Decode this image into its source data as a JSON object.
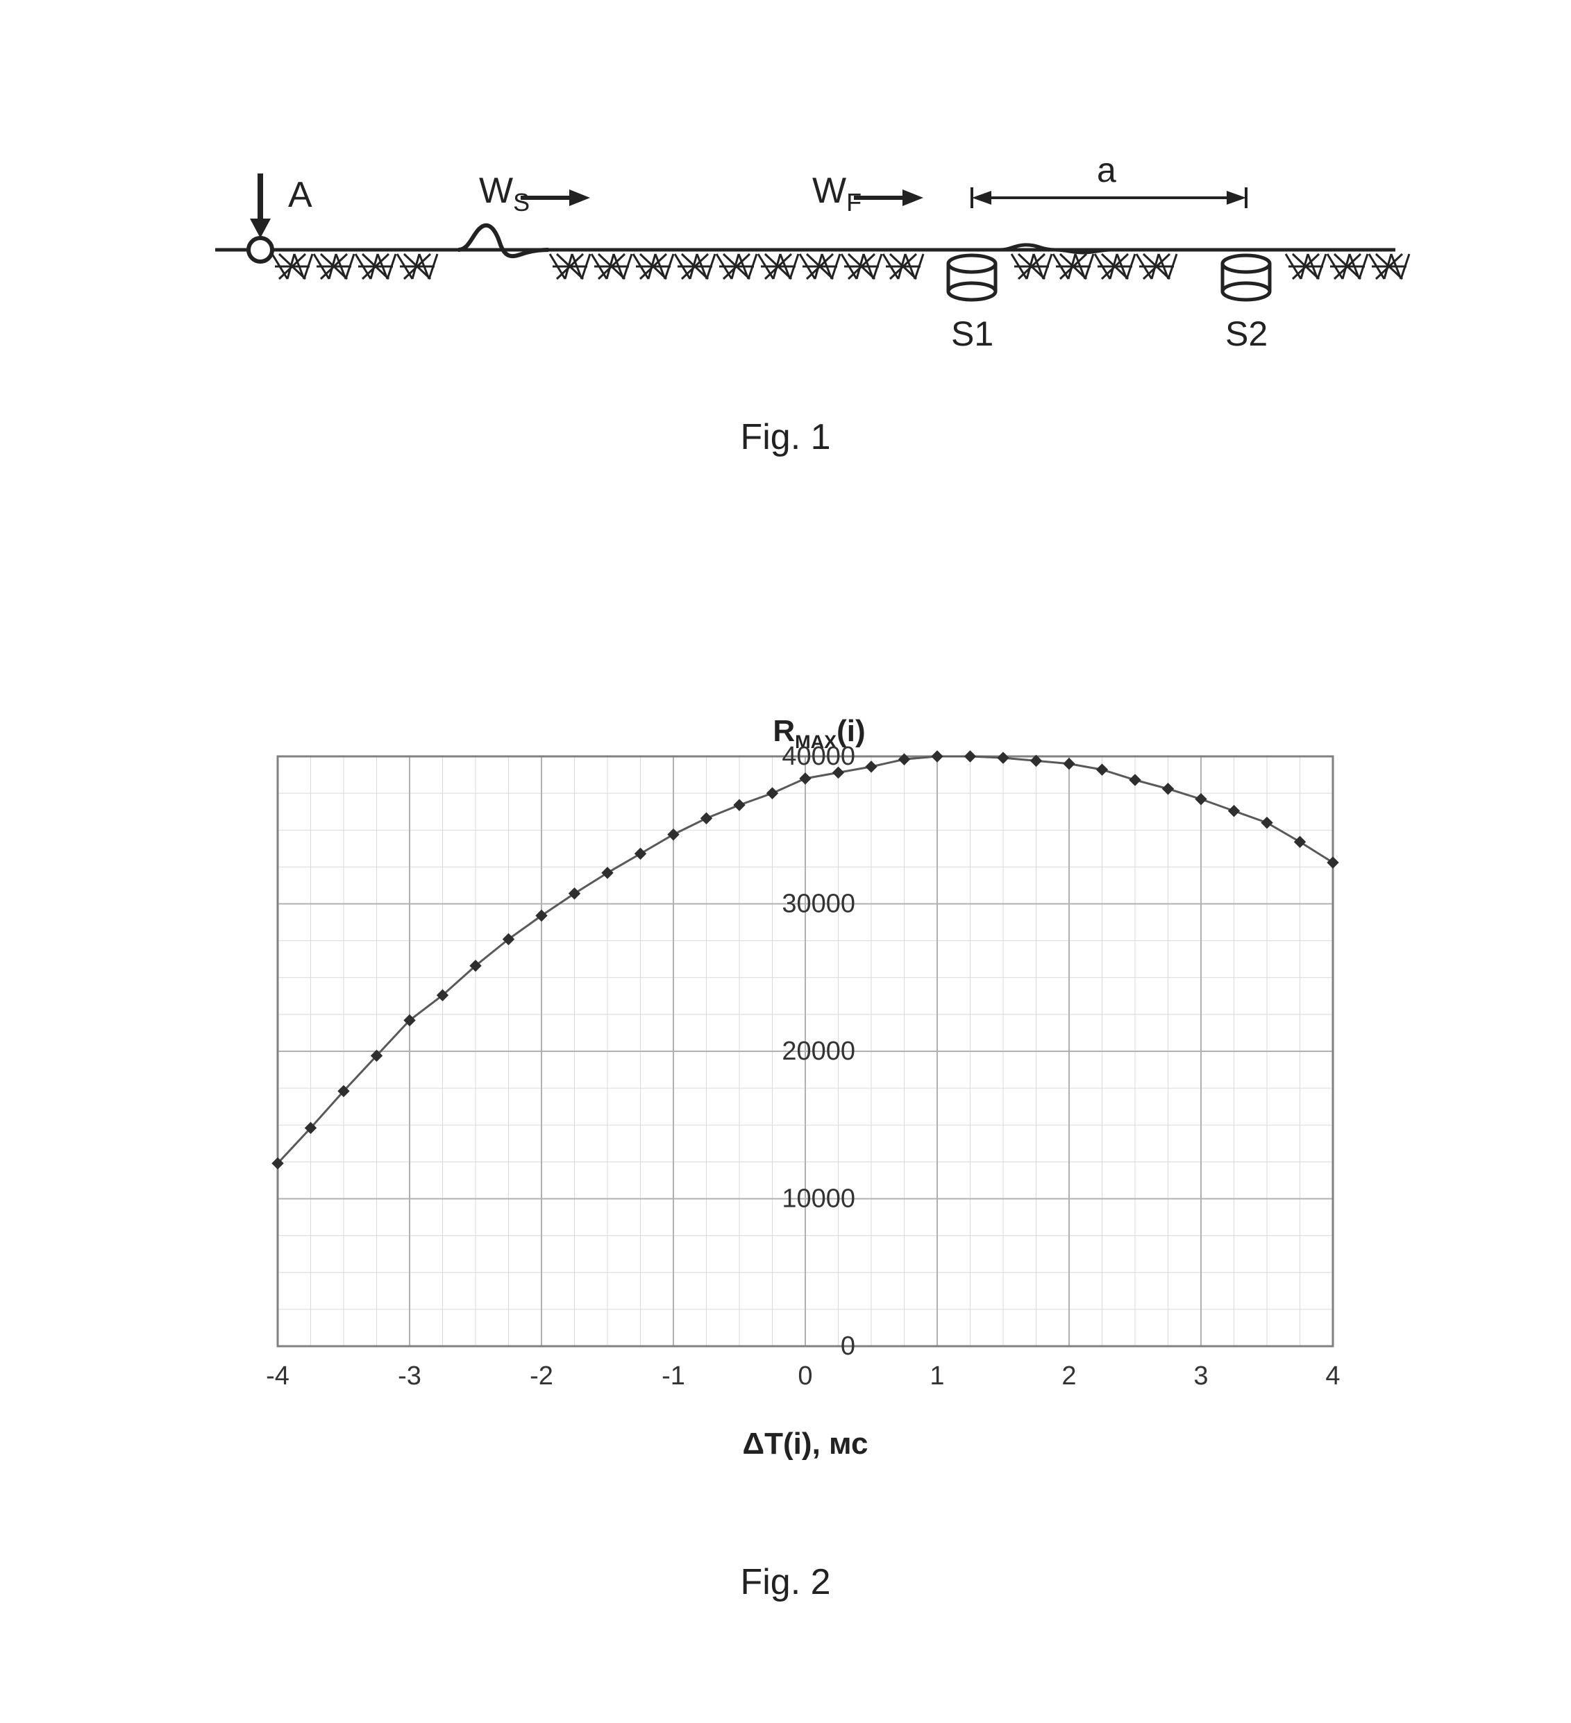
{
  "fig1": {
    "caption": "Fig. 1",
    "labels": {
      "A": "A",
      "Ws": "W",
      "Ws_sub": "S",
      "Wf": "W",
      "Wf_sub": "F",
      "a": "a",
      "S1": "S1",
      "S2": "S2"
    },
    "colors": {
      "stroke": "#222222",
      "fill_can": "#ffffff"
    }
  },
  "fig2": {
    "caption": "Fig. 2",
    "chart": {
      "type": "line-scatter",
      "title": "R",
      "title_sub": "MAX",
      "title_suffix": "(i)",
      "title_fontsize": 44,
      "xlim": [
        -4,
        4
      ],
      "ylim": [
        0,
        40000
      ],
      "xtick_step": 1,
      "ytick_step": 10000,
      "xticks": [
        -4,
        -3,
        -2,
        -1,
        0,
        1,
        2,
        3,
        4
      ],
      "yticks": [
        0,
        10000,
        20000,
        30000,
        40000
      ],
      "xlabel": "ΔT(i),  мс",
      "xlabel_fontsize": 44,
      "label_fontsize": 38,
      "series": [
        {
          "color_line": "#595959",
          "color_marker": "#2e2e2e",
          "marker": "diamond",
          "marker_size": 16,
          "line_width": 3,
          "x": [
            -4.0,
            -3.75,
            -3.5,
            -3.25,
            -3.0,
            -2.75,
            -2.5,
            -2.25,
            -2.0,
            -1.75,
            -1.5,
            -1.25,
            -1.0,
            -0.75,
            -0.5,
            -0.25,
            0.0,
            0.25,
            0.5,
            0.75,
            1.0,
            1.25,
            1.5,
            1.75,
            2.0,
            2.25,
            2.5,
            2.75,
            3.0,
            3.25,
            3.5,
            3.75,
            4.0
          ],
          "y": [
            12400,
            14800,
            17300,
            19700,
            22100,
            23800,
            25800,
            27600,
            29200,
            30700,
            32100,
            33400,
            34700,
            35800,
            36700,
            37500,
            38500,
            38900,
            39300,
            39800,
            40000,
            40000,
            39900,
            39700,
            39500,
            39100,
            38400,
            37800,
            37100,
            36300,
            35500,
            34200,
            32800
          ]
        }
      ],
      "grid_major_color": "#b0b0b0",
      "grid_minor_color": "#d9d9d9",
      "border_color": "#808080",
      "background_color": "#ffffff",
      "tick_label_color": "#333333",
      "minor_x_step": 0.25,
      "minor_y_step": 2500
    }
  }
}
